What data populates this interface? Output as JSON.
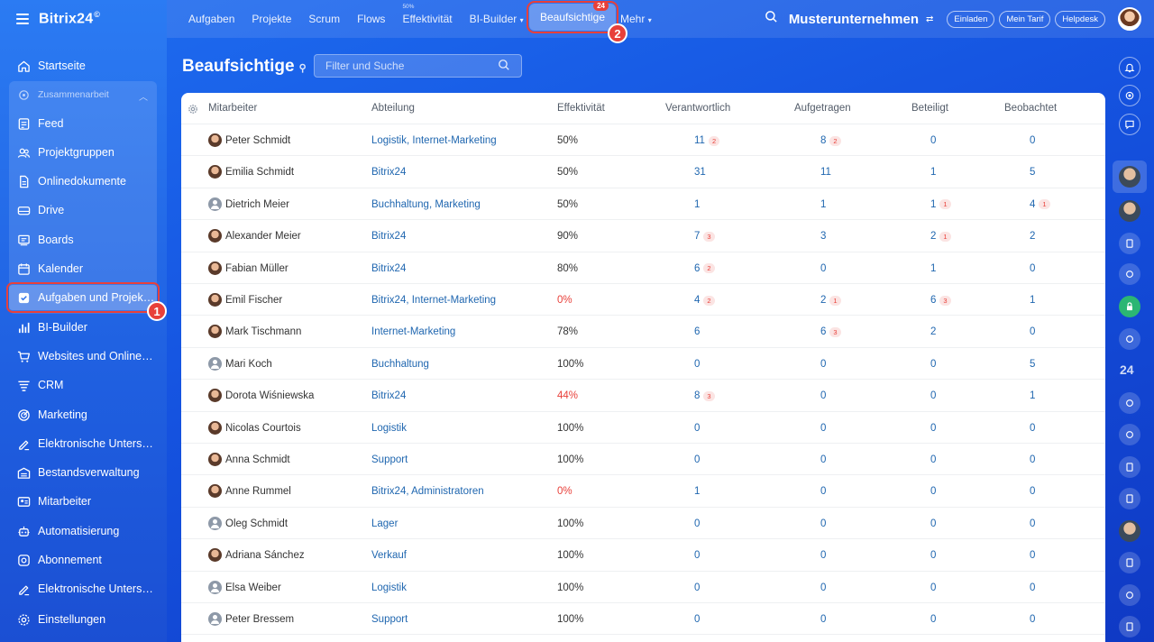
{
  "app": {
    "logo": "Bitrix24",
    "logo_mark": "©"
  },
  "sidebar": {
    "start": "Startseite",
    "group_label": "Zusammenarbeit",
    "group_items": [
      {
        "label": "Feed",
        "icon": "feed-icon"
      },
      {
        "label": "Projektgruppen",
        "icon": "groups-icon"
      },
      {
        "label": "Onlinedokumente",
        "icon": "document-icon"
      },
      {
        "label": "Drive",
        "icon": "drive-icon"
      },
      {
        "label": "Boards",
        "icon": "boards-icon"
      },
      {
        "label": "Kalender",
        "icon": "calendar-icon"
      },
      {
        "label": "Aufgaben und Projek…",
        "icon": "tasks-icon"
      }
    ],
    "items": [
      {
        "label": "BI-Builder",
        "icon": "bi-chart-icon"
      },
      {
        "label": "Websites und Onlines…",
        "icon": "cart-icon"
      },
      {
        "label": "CRM",
        "icon": "crm-icon"
      },
      {
        "label": "Marketing",
        "icon": "marketing-icon"
      },
      {
        "label": "Elektronische Untersc…",
        "icon": "signature-icon"
      },
      {
        "label": "Bestandsverwaltung",
        "icon": "warehouse-icon"
      },
      {
        "label": "Mitarbeiter",
        "icon": "employees-icon"
      },
      {
        "label": "Automatisierung",
        "icon": "automation-icon"
      },
      {
        "label": "Abonnement",
        "icon": "subscription-icon"
      },
      {
        "label": "Elektronische Untersc…",
        "icon": "signature-icon"
      },
      {
        "label": "Einstellungen",
        "icon": "settings-icon"
      }
    ],
    "marker": "1"
  },
  "topnav": {
    "items": [
      "Aufgaben",
      "Projekte",
      "Scrum",
      "Flows",
      "Effektivität",
      "BI-Builder",
      "Beaufsichtige",
      "Mehr"
    ],
    "effectivity_sup": "50%",
    "active_count": "24",
    "marker": "2",
    "company": "Musterunternehmen",
    "pills": [
      "Einladen",
      "Mein Tarif",
      "Helpdesk"
    ]
  },
  "page": {
    "title": "Beaufsichtige",
    "search_placeholder": "Filter und Suche"
  },
  "table": {
    "columns": [
      "Mitarbeiter",
      "Abteilung",
      "Effektivität",
      "Verantwortlich",
      "Aufgetragen",
      "Beteiligt",
      "Beobachtet"
    ],
    "rows": [
      {
        "name": "Peter Schmidt",
        "avatar": "photo",
        "dept": "Logistik, Internet-Marketing",
        "eff": "50%",
        "eff_red": false,
        "v": "11",
        "v_c": "2",
        "a": "8",
        "a_c": "2",
        "b": "0",
        "b_c": "",
        "o": "0",
        "o_c": ""
      },
      {
        "name": "Emilia Schmidt",
        "avatar": "photo",
        "dept": "Bitrix24",
        "eff": "50%",
        "eff_red": false,
        "v": "31",
        "v_c": "",
        "a": "11",
        "a_c": "",
        "b": "1",
        "b_c": "",
        "o": "5",
        "o_c": ""
      },
      {
        "name": "Dietrich Meier",
        "avatar": "placeholder",
        "dept": "Buchhaltung, Marketing",
        "eff": "50%",
        "eff_red": false,
        "v": "1",
        "v_c": "",
        "a": "1",
        "a_c": "",
        "b": "1",
        "b_c": "1",
        "o": "4",
        "o_c": "1"
      },
      {
        "name": "Alexander Meier",
        "avatar": "photo",
        "dept": "Bitrix24",
        "eff": "90%",
        "eff_red": false,
        "v": "7",
        "v_c": "3",
        "a": "3",
        "a_c": "",
        "b": "2",
        "b_c": "1",
        "o": "2",
        "o_c": ""
      },
      {
        "name": "Fabian Müller",
        "avatar": "photo",
        "dept": "Bitrix24",
        "eff": "80%",
        "eff_red": false,
        "v": "6",
        "v_c": "2",
        "a": "0",
        "a_c": "",
        "b": "1",
        "b_c": "",
        "o": "0",
        "o_c": ""
      },
      {
        "name": "Emil Fischer",
        "avatar": "photo",
        "dept": "Bitrix24, Internet-Marketing",
        "eff": "0%",
        "eff_red": true,
        "v": "4",
        "v_c": "2",
        "a": "2",
        "a_c": "1",
        "b": "6",
        "b_c": "3",
        "o": "1",
        "o_c": ""
      },
      {
        "name": "Mark Tischmann",
        "avatar": "photo",
        "dept": "Internet-Marketing",
        "eff": "78%",
        "eff_red": false,
        "v": "6",
        "v_c": "",
        "a": "6",
        "a_c": "3",
        "b": "2",
        "b_c": "",
        "o": "0",
        "o_c": ""
      },
      {
        "name": "Mari Koch",
        "avatar": "placeholder",
        "dept": "Buchhaltung",
        "eff": "100%",
        "eff_red": false,
        "v": "0",
        "v_c": "",
        "a": "0",
        "a_c": "",
        "b": "0",
        "b_c": "",
        "o": "5",
        "o_c": ""
      },
      {
        "name": "Dorota Wiśniewska",
        "avatar": "photo",
        "dept": "Bitrix24",
        "eff": "44%",
        "eff_red": true,
        "v": "8",
        "v_c": "3",
        "a": "0",
        "a_c": "",
        "b": "0",
        "b_c": "",
        "o": "1",
        "o_c": ""
      },
      {
        "name": "Nicolas Courtois",
        "avatar": "photo",
        "dept": "Logistik",
        "eff": "100%",
        "eff_red": false,
        "v": "0",
        "v_c": "",
        "a": "0",
        "a_c": "",
        "b": "0",
        "b_c": "",
        "o": "0",
        "o_c": ""
      },
      {
        "name": "Anna Schmidt",
        "avatar": "photo",
        "dept": "Support",
        "eff": "100%",
        "eff_red": false,
        "v": "0",
        "v_c": "",
        "a": "0",
        "a_c": "",
        "b": "0",
        "b_c": "",
        "o": "0",
        "o_c": ""
      },
      {
        "name": "Anne Rummel",
        "avatar": "photo",
        "dept": "Bitrix24, Administratoren",
        "eff": "0%",
        "eff_red": true,
        "v": "1",
        "v_c": "",
        "a": "0",
        "a_c": "",
        "b": "0",
        "b_c": "",
        "o": "0",
        "o_c": ""
      },
      {
        "name": "Oleg Schmidt",
        "avatar": "placeholder",
        "dept": "Lager",
        "eff": "100%",
        "eff_red": false,
        "v": "0",
        "v_c": "",
        "a": "0",
        "a_c": "",
        "b": "0",
        "b_c": "",
        "o": "0",
        "o_c": ""
      },
      {
        "name": "Adriana Sánchez",
        "avatar": "photo",
        "dept": "Verkauf",
        "eff": "100%",
        "eff_red": false,
        "v": "0",
        "v_c": "",
        "a": "0",
        "a_c": "",
        "b": "0",
        "b_c": "",
        "o": "0",
        "o_c": ""
      },
      {
        "name": "Elsa Weiber",
        "avatar": "placeholder",
        "dept": "Logistik",
        "eff": "100%",
        "eff_red": false,
        "v": "0",
        "v_c": "",
        "a": "0",
        "a_c": "",
        "b": "0",
        "b_c": "",
        "o": "0",
        "o_c": ""
      },
      {
        "name": "Peter Bressem",
        "avatar": "placeholder",
        "dept": "Support",
        "eff": "100%",
        "eff_red": false,
        "v": "0",
        "v_c": "",
        "a": "0",
        "a_c": "",
        "b": "0",
        "b_c": "",
        "o": "0",
        "o_c": ""
      }
    ]
  },
  "rightbar": {
    "badge_24": "24"
  },
  "colors": {
    "accent": "#1f5fe0",
    "link": "#2067b0",
    "alert": "#e8403a"
  }
}
